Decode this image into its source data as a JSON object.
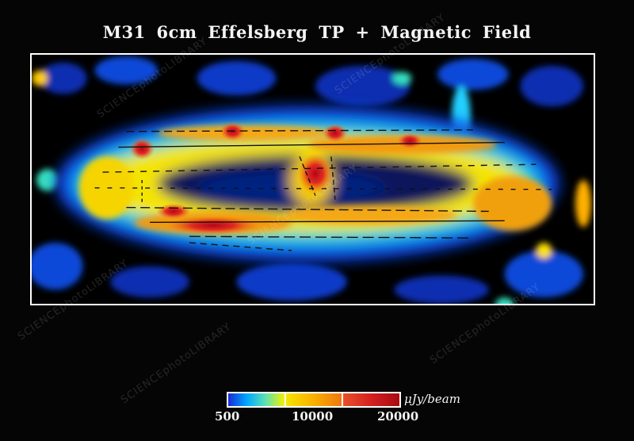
{
  "title": "M31 6cm Effelsberg TP + Magnetic Field",
  "colorbar": {
    "unit": "μJy/beam",
    "ticks": [
      "500",
      "10000",
      "20000"
    ],
    "segments": [
      [
        "#1a2bd6",
        "#00a8ff",
        "#5fe3b0",
        "#f4f000"
      ],
      [
        "#f6e400",
        "#f8b000",
        "#f07810"
      ],
      [
        "#e8502a",
        "#d42020",
        "#a80a10"
      ]
    ]
  },
  "watermark": "SCIENCEphotoLIBRARY",
  "colors": {
    "background": "#050505",
    "frame": "#ffffff"
  }
}
